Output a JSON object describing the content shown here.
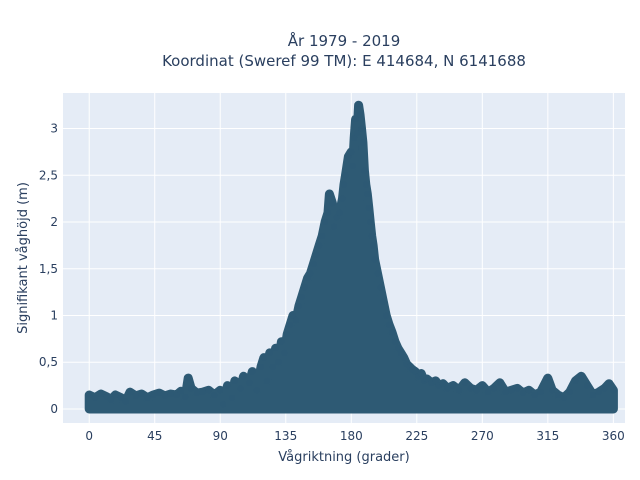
{
  "chart_data": {
    "type": "scatter",
    "title_line1": "År 1979 - 2019",
    "title_line2": "Koordinat (Sweref 99 TM): E 414684, N 6141688",
    "xlabel": "Vågriktning (grader)",
    "ylabel": "Signifikant våghöjd (m)",
    "xlim": [
      -18,
      368
    ],
    "ylim": [
      -0.15,
      3.38
    ],
    "x_ticks": [
      0,
      45,
      90,
      135,
      180,
      225,
      270,
      315,
      360
    ],
    "x_tick_labels": [
      "0",
      "45",
      "90",
      "135",
      "180",
      "225",
      "270",
      "315",
      "360"
    ],
    "y_ticks": [
      0,
      0.5,
      1,
      1.5,
      2,
      2.5,
      3
    ],
    "y_tick_labels": [
      "0",
      "0,5",
      "1",
      "1,5",
      "2",
      "2,5",
      "3"
    ],
    "grid": true,
    "legend": "none",
    "marker_color": "#2e5a74",
    "plot_background": "#e5ecf6",
    "series": [
      {
        "points": [
          [
            0,
            0.15
          ],
          [
            4,
            0.12
          ],
          [
            8,
            0.16
          ],
          [
            12,
            0.13
          ],
          [
            15,
            0.1
          ],
          [
            18,
            0.15
          ],
          [
            22,
            0.12
          ],
          [
            25,
            0.08
          ],
          [
            28,
            0.18
          ],
          [
            32,
            0.14
          ],
          [
            36,
            0.16
          ],
          [
            40,
            0.12
          ],
          [
            44,
            0.15
          ],
          [
            48,
            0.17
          ],
          [
            52,
            0.14
          ],
          [
            56,
            0.16
          ],
          [
            60,
            0.15
          ],
          [
            63,
            0.19
          ],
          [
            66,
            0.13
          ],
          [
            68,
            0.33
          ],
          [
            70,
            0.22
          ],
          [
            74,
            0.17
          ],
          [
            78,
            0.18
          ],
          [
            82,
            0.2
          ],
          [
            86,
            0.15
          ],
          [
            90,
            0.2
          ],
          [
            92,
            0.05
          ],
          [
            95,
            0.25
          ],
          [
            98,
            0.12
          ],
          [
            100,
            0.3
          ],
          [
            104,
            0.22
          ],
          [
            106,
            0.35
          ],
          [
            110,
            0.28
          ],
          [
            112,
            0.4
          ],
          [
            115,
            0.2
          ],
          [
            118,
            0.45
          ],
          [
            120,
            0.55
          ],
          [
            122,
            0.3
          ],
          [
            124,
            0.6
          ],
          [
            126,
            0.45
          ],
          [
            128,
            0.65
          ],
          [
            130,
            0.5
          ],
          [
            132,
            0.72
          ],
          [
            134,
            0.6
          ],
          [
            136,
            0.8
          ],
          [
            138,
            0.9
          ],
          [
            140,
            1.0
          ],
          [
            142,
            0.95
          ],
          [
            144,
            1.1
          ],
          [
            146,
            1.2
          ],
          [
            148,
            1.3
          ],
          [
            150,
            1.4
          ],
          [
            152,
            1.45
          ],
          [
            154,
            1.55
          ],
          [
            156,
            1.65
          ],
          [
            158,
            1.75
          ],
          [
            160,
            1.85
          ],
          [
            162,
            2.0
          ],
          [
            164,
            2.1
          ],
          [
            165,
            2.3
          ],
          [
            167,
            2.2
          ],
          [
            168,
            1.95
          ],
          [
            170,
            2.05
          ],
          [
            172,
            2.1
          ],
          [
            174,
            2.25
          ],
          [
            175,
            2.4
          ],
          [
            176,
            2.5
          ],
          [
            178,
            2.7
          ],
          [
            180,
            2.75
          ],
          [
            181,
            2.6
          ],
          [
            182,
            2.9
          ],
          [
            183,
            3.1
          ],
          [
            184,
            2.95
          ],
          [
            185,
            3.25
          ],
          [
            186,
            3.15
          ],
          [
            187,
            3.0
          ],
          [
            188,
            2.85
          ],
          [
            189,
            2.55
          ],
          [
            190,
            2.4
          ],
          [
            191,
            2.3
          ],
          [
            192,
            2.15
          ],
          [
            193,
            2.0
          ],
          [
            194,
            1.85
          ],
          [
            195,
            1.75
          ],
          [
            196,
            1.6
          ],
          [
            198,
            1.45
          ],
          [
            200,
            1.3
          ],
          [
            202,
            1.15
          ],
          [
            204,
            1.0
          ],
          [
            206,
            0.9
          ],
          [
            208,
            0.82
          ],
          [
            210,
            0.72
          ],
          [
            212,
            0.65
          ],
          [
            214,
            0.6
          ],
          [
            216,
            0.55
          ],
          [
            218,
            0.48
          ],
          [
            220,
            0.45
          ],
          [
            222,
            0.42
          ],
          [
            224,
            0.4
          ],
          [
            226,
            0.35
          ],
          [
            228,
            0.38
          ],
          [
            230,
            0.3
          ],
          [
            232,
            0.32
          ],
          [
            235,
            0.28
          ],
          [
            238,
            0.3
          ],
          [
            240,
            0.25
          ],
          [
            243,
            0.27
          ],
          [
            246,
            0.22
          ],
          [
            250,
            0.25
          ],
          [
            254,
            0.2
          ],
          [
            258,
            0.28
          ],
          [
            262,
            0.22
          ],
          [
            266,
            0.2
          ],
          [
            270,
            0.25
          ],
          [
            274,
            0.18
          ],
          [
            278,
            0.22
          ],
          [
            282,
            0.28
          ],
          [
            286,
            0.18
          ],
          [
            290,
            0.2
          ],
          [
            294,
            0.22
          ],
          [
            298,
            0.17
          ],
          [
            302,
            0.2
          ],
          [
            306,
            0.15
          ],
          [
            310,
            0.18
          ],
          [
            315,
            0.33
          ],
          [
            318,
            0.2
          ],
          [
            322,
            0.15
          ],
          [
            326,
            0.12
          ],
          [
            330,
            0.18
          ],
          [
            334,
            0.3
          ],
          [
            338,
            0.35
          ],
          [
            342,
            0.25
          ],
          [
            346,
            0.15
          ],
          [
            350,
            0.18
          ],
          [
            354,
            0.22
          ],
          [
            357,
            0.27
          ],
          [
            360,
            0.2
          ]
        ]
      }
    ]
  }
}
